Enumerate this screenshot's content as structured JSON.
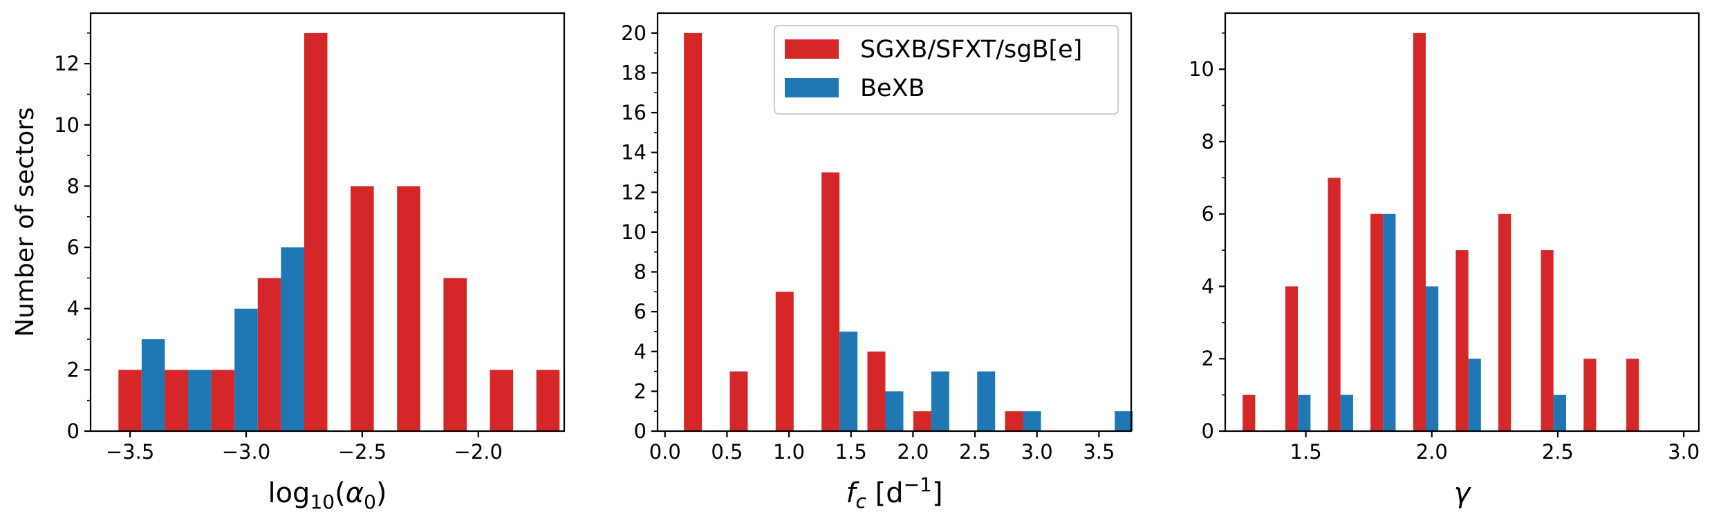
{
  "colors": {
    "sg": "#d62728",
    "bexb": "#1f77b4"
  },
  "legend": [
    "SGXB/SFXT/sgB[e]",
    "BeXB"
  ],
  "chart_data": [
    {
      "type": "bar",
      "xlabel": "log₁₀(α₀)",
      "ylabel": "Number of sectors",
      "xlim": [
        -3.67,
        -1.63
      ],
      "ylim": [
        0,
        13.65
      ],
      "xticks": [
        -3.5,
        -3.0,
        -2.5,
        -2.0
      ],
      "xtick_labels": [
        "−3.5",
        "−3.0",
        "−2.5",
        "−2.0"
      ],
      "yticks": [
        0,
        2,
        4,
        6,
        8,
        10,
        12
      ],
      "ytick_labels": [
        "0",
        "2",
        "4",
        "6",
        "8",
        "10",
        "12"
      ],
      "bar_width": 0.1,
      "series": [
        {
          "name": "SGXB/SFXT/sgB[e]",
          "color_key": "sg",
          "x": [
            -3.5,
            -3.3,
            -3.1,
            -2.9,
            -2.7,
            -2.5,
            -2.3,
            -2.1,
            -1.9,
            -1.7
          ],
          "values": [
            2,
            2,
            2,
            5,
            13,
            8,
            8,
            5,
            2,
            2
          ]
        },
        {
          "name": "BeXB",
          "color_key": "bexb",
          "x": [
            -3.4,
            -3.2,
            -3.0,
            -2.8
          ],
          "values": [
            3,
            2,
            4,
            6
          ]
        }
      ]
    },
    {
      "type": "bar",
      "xlabel": "f_c [d⁻¹]",
      "ylabel": "",
      "xlim": [
        -0.06,
        3.76
      ],
      "ylim": [
        0,
        21
      ],
      "xticks": [
        0,
        0.5,
        1.0,
        1.5,
        2.0,
        2.5,
        3.0,
        3.5
      ],
      "xtick_labels": [
        "0.0",
        "0.5",
        "1.0",
        "1.5",
        "2.0",
        "2.5",
        "3.0",
        "3.5"
      ],
      "yticks": [
        0,
        2,
        4,
        6,
        8,
        10,
        12,
        14,
        16,
        18,
        20
      ],
      "ytick_labels": [
        "0",
        "2",
        "4",
        "6",
        "8",
        "10",
        "12",
        "14",
        "16",
        "18",
        "20"
      ],
      "bar_width": 0.145,
      "legend": true,
      "legend_loc": "upper right",
      "series": [
        {
          "name": "SGXB/SFXT/sgB[e]",
          "color_key": "sg",
          "x": [
            0.225,
            0.595,
            0.965,
            1.335,
            1.705,
            2.075,
            2.815
          ],
          "values": [
            20,
            3,
            7,
            13,
            4,
            1,
            1
          ]
        },
        {
          "name": "BeXB",
          "color_key": "bexb",
          "x": [
            1.48,
            1.85,
            2.22,
            2.59,
            2.96,
            3.7
          ],
          "values": [
            5,
            2,
            3,
            3,
            1,
            1
          ]
        }
      ]
    },
    {
      "type": "bar",
      "xlabel": "γ",
      "ylabel": "",
      "xlim": [
        1.18,
        3.06
      ],
      "ylim": [
        0,
        11.55
      ],
      "xticks": [
        1.5,
        2.0,
        2.5,
        3.0
      ],
      "xtick_labels": [
        "1.5",
        "2.0",
        "2.5",
        "3.0"
      ],
      "yticks": [
        0,
        2,
        4,
        6,
        8,
        10
      ],
      "ytick_labels": [
        "0",
        "2",
        "4",
        "6",
        "8",
        "10"
      ],
      "bar_width": 0.05,
      "series": [
        {
          "name": "SGXB/SFXT/sgB[e]",
          "color_key": "sg",
          "x": [
            1.274,
            1.4435,
            1.6125,
            1.7815,
            1.951,
            2.12,
            2.289,
            2.458,
            2.6275,
            2.797
          ],
          "values": [
            1,
            4,
            7,
            6,
            11,
            5,
            6,
            5,
            2,
            2
          ]
        },
        {
          "name": "BeXB",
          "color_key": "bexb",
          "x": [
            1.4935,
            1.6625,
            1.8315,
            2.001,
            2.17,
            2.508
          ],
          "values": [
            1,
            1,
            6,
            4,
            2,
            1
          ]
        }
      ]
    }
  ]
}
